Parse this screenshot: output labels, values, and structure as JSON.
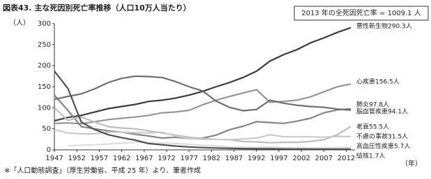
{
  "chart_data": {
    "type": "line",
    "title": "図表43.  主な死因別死亡率推移（人口10万人当たり）",
    "note": "2013 年の全死因死亡率 = 1009.1 人",
    "y_label": "（人）",
    "x_label": "（年）",
    "source": "※「人口動態調査」（厚生労働省、平成 25 年）より、筆者作成",
    "x": [
      1947,
      1950,
      1953,
      1956,
      1959,
      1962,
      1965,
      1968,
      1971,
      1974,
      1977,
      1980,
      1983,
      1986,
      1989,
      1992,
      1995,
      1998,
      2001,
      2004,
      2007,
      2010,
      2013
    ],
    "xlim": [
      1947,
      2013
    ],
    "xticks": [
      1947,
      1952,
      1957,
      1962,
      1967,
      1972,
      1977,
      1982,
      1987,
      1992,
      1997,
      2002,
      2007,
      2012
    ],
    "ylim": [
      0,
      300
    ],
    "yticks": [
      0,
      50,
      100,
      150,
      200,
      250,
      300
    ],
    "series": [
      {
        "label": "悪性新生物290.3人",
        "color": "#3a3a3a",
        "values": [
          69,
          77,
          82,
          90,
          98,
          103,
          108,
          115,
          118,
          123,
          130,
          139,
          150,
          160,
          172,
          187,
          211,
          226,
          238,
          254,
          266,
          279,
          290.3
        ]
      },
      {
        "label": "心疾患156.5人",
        "color": "#959595",
        "values": [
          63,
          64,
          62,
          67,
          72,
          75,
          78,
          82,
          88,
          90,
          94,
          107,
          118,
          127,
          135,
          143,
          113,
          115,
          118,
          126,
          138,
          150,
          156.5
        ]
      },
      {
        "label": "肺炎97.8人",
        "color": "#858585",
        "values": [
          130,
          94,
          55,
          50,
          45,
          42,
          37,
          33,
          28,
          30,
          27,
          28,
          35,
          48,
          56,
          67,
          65,
          63,
          68,
          75,
          88,
          95,
          97.8
        ]
      },
      {
        "label": "脳血管疾患94.1人",
        "color": "#6e6e6e",
        "values": [
          120,
          127,
          133,
          145,
          160,
          170,
          175,
          174,
          172,
          162,
          150,
          140,
          116,
          101,
          93,
          96,
          118,
          111,
          106,
          103,
          101,
          97,
          94.1
        ]
      },
      {
        "label": "老衰55.5人",
        "color": "#bdbdbd",
        "values": [
          100,
          70,
          78,
          66,
          55,
          52,
          50,
          45,
          40,
          35,
          30,
          27,
          25,
          24,
          20,
          19,
          17,
          18,
          18,
          20,
          24,
          36,
          55.5
        ]
      },
      {
        "label": "不慮の事故31.5人",
        "color": "#cacaca",
        "values": [
          48,
          40,
          38,
          38,
          42,
          42,
          41,
          40,
          42,
          33,
          27,
          25,
          25,
          24,
          26,
          28,
          36,
          31,
          31,
          31,
          30,
          32,
          31.5
        ]
      },
      {
        "label": "高血圧性疾患5.7人",
        "color": "#dcdcdc",
        "values": [
          null,
          10,
          11,
          12,
          14,
          16,
          18,
          17,
          16,
          15,
          13,
          11,
          9,
          7,
          6,
          6,
          7,
          5,
          5,
          4.5,
          5,
          5.5,
          5.7
        ]
      },
      {
        "label": "結核1.7人",
        "color": "#505050",
        "values": [
          187,
          146,
          66,
          48,
          36,
          29,
          23,
          15,
          12,
          9,
          7,
          5.5,
          4.5,
          3.7,
          3,
          2.7,
          2.6,
          2.2,
          2,
          1.8,
          1.7,
          1.7,
          1.7
        ]
      }
    ]
  }
}
